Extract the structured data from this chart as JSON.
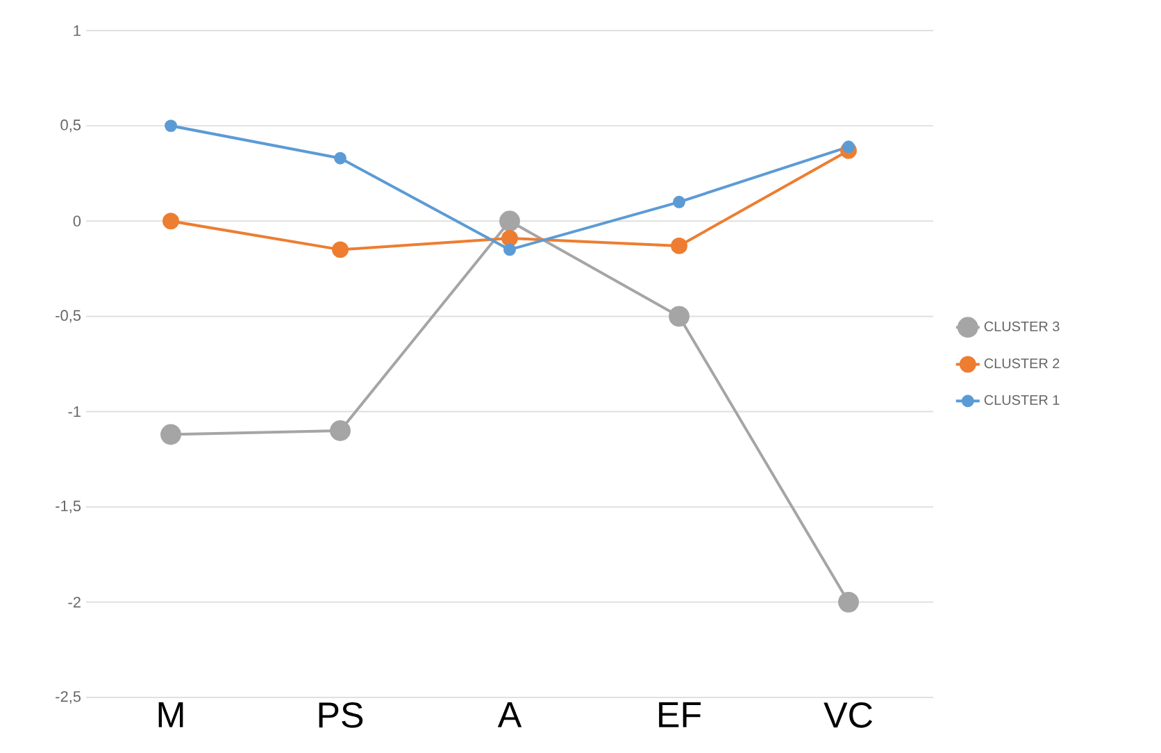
{
  "chart_data": {
    "type": "line",
    "categories": [
      "M",
      "PS",
      "A",
      "EF",
      "VC"
    ],
    "series": [
      {
        "name": "CLUSTER 3",
        "color": "#a5a5a5",
        "values": [
          -1.12,
          -1.1,
          0,
          -0.5,
          -2
        ]
      },
      {
        "name": "CLUSTER 2",
        "color": "#ed7d31",
        "values": [
          0,
          -0.15,
          -0.09,
          -0.13,
          0.37
        ]
      },
      {
        "name": "CLUSTER 1",
        "color": "#5b9bd5",
        "values": [
          0.5,
          0.33,
          -0.15,
          0.1,
          0.39
        ]
      }
    ],
    "ylim": [
      -2.5,
      1
    ],
    "yticks": [
      {
        "value": -2.5,
        "label": "-2,5"
      },
      -2,
      {
        "value": -1.5,
        "label": "-1,5"
      },
      -1,
      {
        "value": -0.5,
        "label": "-0,5"
      },
      0,
      {
        "value": 0.5,
        "label": "0,5"
      },
      1
    ],
    "grid": "y",
    "legend": "right",
    "marker": "circle",
    "line_style": "solid"
  }
}
